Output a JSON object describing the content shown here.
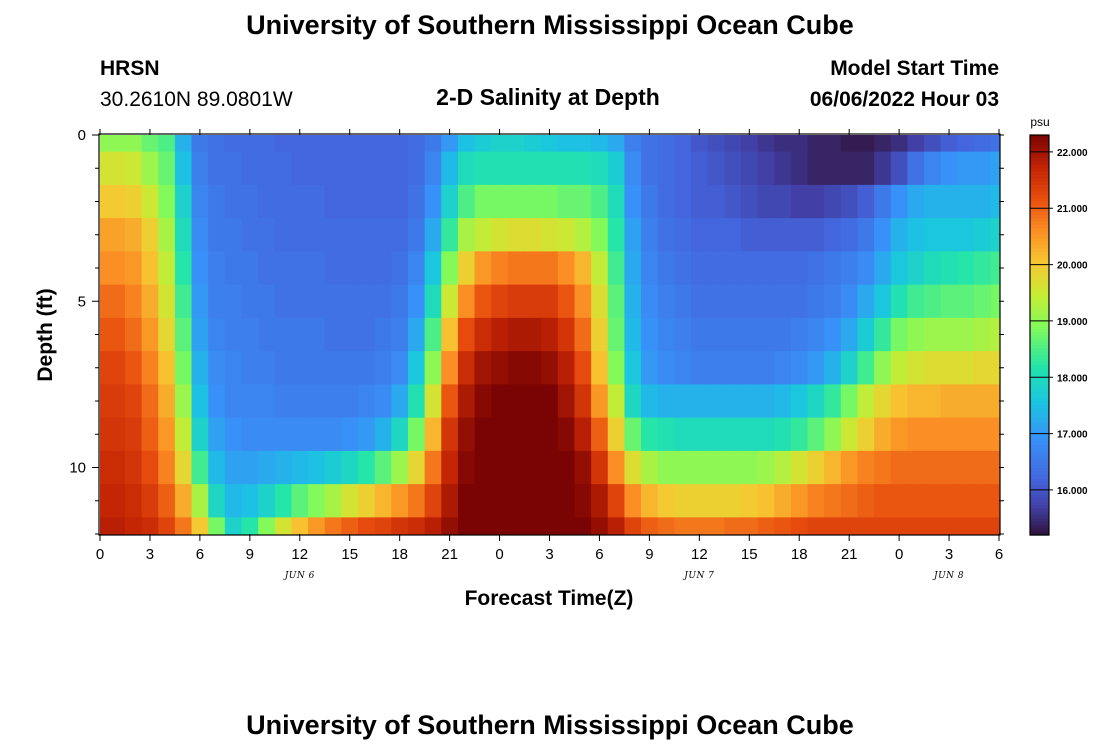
{
  "header": {
    "title": "University of Southern Mississippi Ocean Cube",
    "station": "HRSN",
    "coords": "30.2610N  89.0801W",
    "subtitle": "2-D Salinity at Depth",
    "model_label": "Model Start Time",
    "model_time": "06/06/2022 Hour 03"
  },
  "footer": {
    "title": "University of Southern Mississippi Ocean Cube"
  },
  "chart_data": {
    "type": "heatmap",
    "title": "2-D Salinity at Depth",
    "xlabel": "Forecast Time(Z)",
    "ylabel": "Depth (ft)",
    "x_tick_labels": [
      "0",
      "3",
      "6",
      "9",
      "12",
      "15",
      "18",
      "21",
      "0",
      "3",
      "6",
      "9",
      "12",
      "15",
      "18",
      "21",
      "0",
      "3",
      "6"
    ],
    "x_range_hours": [
      0,
      54
    ],
    "day_labels": [
      {
        "label": "JUN 6",
        "hour": 12
      },
      {
        "label": "JUN 7",
        "hour": 36
      },
      {
        "label": "JUN 8",
        "hour": 51
      }
    ],
    "y_tick_labels": [
      "0",
      "5",
      "10"
    ],
    "y_ticks": [
      0,
      5,
      10
    ],
    "y_range_ft": [
      0,
      12
    ],
    "depth_levels_ft": [
      0,
      1,
      2,
      3,
      4,
      5,
      6,
      7,
      8,
      9,
      10,
      11,
      12
    ],
    "time_hours": [
      0,
      1,
      2,
      3,
      4,
      5,
      6,
      7,
      8,
      9,
      10,
      11,
      12,
      13,
      14,
      15,
      16,
      17,
      18,
      19,
      20,
      21,
      22,
      23,
      24,
      25,
      26,
      27,
      28,
      29,
      30,
      31,
      32,
      33,
      34,
      35,
      36,
      37,
      38,
      39,
      40,
      41,
      42,
      43,
      44,
      45,
      46,
      47,
      48,
      49,
      50,
      51,
      52,
      53,
      54
    ],
    "colorbar": {
      "unit": "psu",
      "labels": [
        "22.000",
        "21.000",
        "20.000",
        "19.000",
        "18.000",
        "17.000",
        "16.000"
      ],
      "values": [
        22,
        21,
        20,
        19,
        18,
        17,
        16
      ],
      "vmin": 15.2,
      "vmax": 22.3
    },
    "salinity_psu_by_depth": [
      [
        19.0,
        19.0,
        19.0,
        18.7,
        18.5,
        17.3,
        16.5,
        16.4,
        16.3,
        16.3,
        16.3,
        16.2,
        16.2,
        16.2,
        16.2,
        16.2,
        16.2,
        16.2,
        16.2,
        16.3,
        16.5,
        17.0,
        17.5,
        17.7,
        17.8,
        17.8,
        17.7,
        17.6,
        17.5,
        17.5,
        17.4,
        17.2,
        16.6,
        16.4,
        16.3,
        16.2,
        16.0,
        15.9,
        15.8,
        15.7,
        15.6,
        15.5,
        15.5,
        15.4,
        15.4,
        15.3,
        15.3,
        15.4,
        15.5,
        15.7,
        15.9,
        16.1,
        16.2,
        16.3,
        16.4
      ],
      [
        19.6,
        19.6,
        19.5,
        19.1,
        18.7,
        17.5,
        16.6,
        16.4,
        16.4,
        16.3,
        16.3,
        16.3,
        16.2,
        16.2,
        16.2,
        16.2,
        16.2,
        16.2,
        16.2,
        16.3,
        16.7,
        17.4,
        18.0,
        18.1,
        18.1,
        18.1,
        18.1,
        18.1,
        18.1,
        18.1,
        18.0,
        17.7,
        16.8,
        16.4,
        16.3,
        16.2,
        16.1,
        16.0,
        15.9,
        15.8,
        15.7,
        15.6,
        15.5,
        15.4,
        15.4,
        15.4,
        15.4,
        15.6,
        15.9,
        16.4,
        16.7,
        16.9,
        17.0,
        17.0,
        17.1
      ],
      [
        20.0,
        20.0,
        19.9,
        19.5,
        18.9,
        17.8,
        16.7,
        16.5,
        16.4,
        16.4,
        16.3,
        16.3,
        16.3,
        16.3,
        16.2,
        16.2,
        16.2,
        16.2,
        16.2,
        16.4,
        16.9,
        17.8,
        18.5,
        18.8,
        18.8,
        18.8,
        18.8,
        18.8,
        18.7,
        18.7,
        18.5,
        18.0,
        16.9,
        16.5,
        16.3,
        16.2,
        16.1,
        16.1,
        16.0,
        15.9,
        15.8,
        15.8,
        15.7,
        15.7,
        15.8,
        15.9,
        16.1,
        16.5,
        16.9,
        17.2,
        17.3,
        17.3,
        17.3,
        17.3,
        17.4
      ],
      [
        20.4,
        20.4,
        20.3,
        19.9,
        19.2,
        18.0,
        16.8,
        16.5,
        16.5,
        16.4,
        16.4,
        16.3,
        16.3,
        16.3,
        16.3,
        16.3,
        16.3,
        16.3,
        16.3,
        16.5,
        17.2,
        18.3,
        19.2,
        19.4,
        19.6,
        19.7,
        19.7,
        19.6,
        19.5,
        19.3,
        18.9,
        18.2,
        17.1,
        16.6,
        16.4,
        16.3,
        16.2,
        16.2,
        16.2,
        16.1,
        16.1,
        16.1,
        16.1,
        16.1,
        16.2,
        16.3,
        16.5,
        16.9,
        17.3,
        17.5,
        17.6,
        17.6,
        17.6,
        17.7,
        17.8
      ],
      [
        20.6,
        20.6,
        20.5,
        20.1,
        19.4,
        18.2,
        16.9,
        16.6,
        16.5,
        16.5,
        16.4,
        16.4,
        16.4,
        16.4,
        16.3,
        16.3,
        16.3,
        16.3,
        16.4,
        16.7,
        17.6,
        18.9,
        19.9,
        20.5,
        20.7,
        20.8,
        20.8,
        20.8,
        20.6,
        20.2,
        19.4,
        18.4,
        17.2,
        16.7,
        16.5,
        16.4,
        16.3,
        16.3,
        16.3,
        16.3,
        16.3,
        16.3,
        16.3,
        16.4,
        16.5,
        16.6,
        16.8,
        17.2,
        17.6,
        17.8,
        18.0,
        18.1,
        18.2,
        18.3,
        18.4
      ],
      [
        20.9,
        20.9,
        20.7,
        20.3,
        19.6,
        18.4,
        17.0,
        16.6,
        16.6,
        16.5,
        16.5,
        16.4,
        16.4,
        16.4,
        16.4,
        16.4,
        16.4,
        16.4,
        16.5,
        16.9,
        18.0,
        19.5,
        20.6,
        21.1,
        21.3,
        21.4,
        21.4,
        21.4,
        21.1,
        20.6,
        19.7,
        18.6,
        17.3,
        16.8,
        16.6,
        16.5,
        16.4,
        16.4,
        16.4,
        16.4,
        16.4,
        16.4,
        16.4,
        16.5,
        16.6,
        16.8,
        17.2,
        17.6,
        18.1,
        18.4,
        18.5,
        18.6,
        18.6,
        18.7,
        18.8
      ],
      [
        21.1,
        21.1,
        20.9,
        20.5,
        19.8,
        18.6,
        17.1,
        16.7,
        16.6,
        16.6,
        16.5,
        16.5,
        16.5,
        16.5,
        16.4,
        16.4,
        16.4,
        16.5,
        16.6,
        17.2,
        18.5,
        20.1,
        21.2,
        21.6,
        21.8,
        21.9,
        21.9,
        21.8,
        21.5,
        20.9,
        19.9,
        18.7,
        17.4,
        16.9,
        16.7,
        16.6,
        16.5,
        16.5,
        16.5,
        16.5,
        16.5,
        16.5,
        16.6,
        16.7,
        16.9,
        17.2,
        17.7,
        18.3,
        18.8,
        19.0,
        19.1,
        19.1,
        19.1,
        19.2,
        19.3
      ],
      [
        21.3,
        21.3,
        21.1,
        20.7,
        20.1,
        18.8,
        17.3,
        16.8,
        16.7,
        16.6,
        16.6,
        16.5,
        16.5,
        16.5,
        16.5,
        16.5,
        16.5,
        16.6,
        16.8,
        17.6,
        19.0,
        20.6,
        21.6,
        22.0,
        22.1,
        22.2,
        22.2,
        22.1,
        21.8,
        21.2,
        20.1,
        18.9,
        17.6,
        17.0,
        16.8,
        16.7,
        16.6,
        16.6,
        16.6,
        16.6,
        16.6,
        16.7,
        16.8,
        17.0,
        17.3,
        17.8,
        18.4,
        19.0,
        19.4,
        19.6,
        19.7,
        19.7,
        19.7,
        19.8,
        19.8
      ],
      [
        21.4,
        21.4,
        21.3,
        20.9,
        20.3,
        19.1,
        17.5,
        16.9,
        16.7,
        16.7,
        16.7,
        16.6,
        16.6,
        16.6,
        16.6,
        16.6,
        16.7,
        16.8,
        17.2,
        18.1,
        19.6,
        21.1,
        21.9,
        22.2,
        22.3,
        22.3,
        22.3,
        22.3,
        22.0,
        21.5,
        20.5,
        19.4,
        17.9,
        17.4,
        17.3,
        17.3,
        17.3,
        17.3,
        17.3,
        17.3,
        17.3,
        17.4,
        17.6,
        17.9,
        18.3,
        18.8,
        19.4,
        19.8,
        20.1,
        20.2,
        20.2,
        20.3,
        20.3,
        20.3,
        20.3
      ],
      [
        21.5,
        21.5,
        21.4,
        21.0,
        20.5,
        19.4,
        17.8,
        17.1,
        16.9,
        16.8,
        16.8,
        16.8,
        16.8,
        16.8,
        16.8,
        16.9,
        17.0,
        17.3,
        17.9,
        18.8,
        20.2,
        21.5,
        22.1,
        22.3,
        22.3,
        22.3,
        22.3,
        22.3,
        22.2,
        21.8,
        21.0,
        19.9,
        18.7,
        18.2,
        18.1,
        18.0,
        18.0,
        18.0,
        18.0,
        18.0,
        18.0,
        18.1,
        18.3,
        18.6,
        19.0,
        19.5,
        19.9,
        20.3,
        20.5,
        20.6,
        20.6,
        20.6,
        20.6,
        20.6,
        20.6
      ],
      [
        21.6,
        21.6,
        21.5,
        21.2,
        20.7,
        19.8,
        18.4,
        17.4,
        17.1,
        17.1,
        17.2,
        17.3,
        17.4,
        17.5,
        17.7,
        17.9,
        18.2,
        18.6,
        19.1,
        19.8,
        20.8,
        21.7,
        22.2,
        22.3,
        22.3,
        22.3,
        22.3,
        22.3,
        22.3,
        22.1,
        21.5,
        20.6,
        19.7,
        19.2,
        19.0,
        19.0,
        19.0,
        19.0,
        19.0,
        19.0,
        19.1,
        19.3,
        19.6,
        19.9,
        20.2,
        20.5,
        20.7,
        20.8,
        20.9,
        20.9,
        20.9,
        20.9,
        20.9,
        20.9,
        20.9
      ],
      [
        21.7,
        21.7,
        21.6,
        21.4,
        21.0,
        20.3,
        19.2,
        17.9,
        17.4,
        17.5,
        17.8,
        18.2,
        18.6,
        18.9,
        19.2,
        19.6,
        19.9,
        20.2,
        20.5,
        20.8,
        21.3,
        21.9,
        22.3,
        22.3,
        22.3,
        22.3,
        22.3,
        22.3,
        22.3,
        22.2,
        21.9,
        21.3,
        20.6,
        20.2,
        20.0,
        19.9,
        19.9,
        19.9,
        19.9,
        20.0,
        20.1,
        20.3,
        20.5,
        20.7,
        20.8,
        20.9,
        21.0,
        21.1,
        21.1,
        21.1,
        21.1,
        21.1,
        21.1,
        21.1,
        21.1
      ],
      [
        21.8,
        21.8,
        21.7,
        21.6,
        21.3,
        20.8,
        20.0,
        18.8,
        17.8,
        18.2,
        18.9,
        19.6,
        20.1,
        20.5,
        20.8,
        21.0,
        21.2,
        21.3,
        21.5,
        21.6,
        21.8,
        22.1,
        22.3,
        22.3,
        22.3,
        22.3,
        22.3,
        22.3,
        22.3,
        22.3,
        22.1,
        21.8,
        21.3,
        21.0,
        20.9,
        20.8,
        20.8,
        20.8,
        20.9,
        20.9,
        21.0,
        21.1,
        21.2,
        21.3,
        21.3,
        21.3,
        21.3,
        21.3,
        21.3,
        21.3,
        21.3,
        21.3,
        21.3,
        21.3,
        21.3
      ]
    ]
  }
}
